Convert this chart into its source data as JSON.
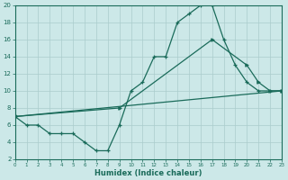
{
  "xlabel": "Humidex (Indice chaleur)",
  "ylabel": "",
  "bg_color": "#cce8e8",
  "grid_color": "#aacccc",
  "line_color": "#1a6b5a",
  "xlim": [
    0,
    23
  ],
  "ylim": [
    2,
    20
  ],
  "xticks": [
    0,
    1,
    2,
    3,
    4,
    5,
    6,
    7,
    8,
    9,
    10,
    11,
    12,
    13,
    14,
    15,
    16,
    17,
    18,
    19,
    20,
    21,
    22,
    23
  ],
  "yticks": [
    2,
    4,
    6,
    8,
    10,
    12,
    14,
    16,
    18,
    20
  ],
  "line1_x": [
    0,
    1,
    2,
    3,
    4,
    5,
    6,
    7,
    8,
    9,
    10,
    11,
    12,
    13,
    14,
    15,
    16,
    17,
    18,
    19,
    20,
    21,
    22,
    23
  ],
  "line1_y": [
    7,
    6,
    6,
    5,
    5,
    5,
    4,
    3,
    3,
    6,
    10,
    11,
    14,
    14,
    18,
    19,
    20,
    20,
    16,
    13,
    11,
    10,
    10,
    10
  ],
  "line2_x": [
    0,
    9,
    17,
    20,
    21,
    22,
    23
  ],
  "line2_y": [
    7,
    8,
    16,
    13,
    11,
    10,
    10
  ],
  "line3_x": [
    0,
    23
  ],
  "line3_y": [
    7,
    10
  ]
}
